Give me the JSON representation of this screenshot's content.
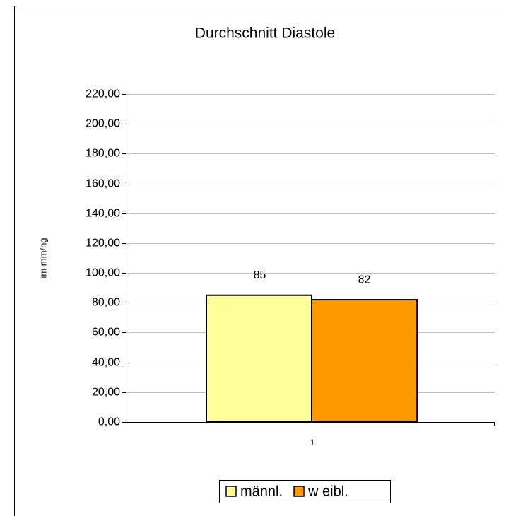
{
  "chart_data": {
    "type": "bar",
    "title": "Durchschnitt Diastole",
    "y_label": "im mm/hg",
    "categories": [
      "1"
    ],
    "series": [
      {
        "name": "männl.",
        "color": "#ffff99",
        "values": [
          85
        ]
      },
      {
        "name": "w eibl.",
        "color": "#ff9900",
        "values": [
          82
        ]
      }
    ],
    "ylim": [
      0,
      220
    ],
    "yticks": [
      {
        "value": 0,
        "label": "0,00"
      },
      {
        "value": 20,
        "label": "20,00"
      },
      {
        "value": 40,
        "label": "40,00"
      },
      {
        "value": 60,
        "label": "60,00"
      },
      {
        "value": 80,
        "label": "80,00"
      },
      {
        "value": 100,
        "label": "100,00"
      },
      {
        "value": 120,
        "label": "120,00"
      },
      {
        "value": 140,
        "label": "140,00"
      },
      {
        "value": 160,
        "label": "160,00"
      },
      {
        "value": 180,
        "label": "180,00"
      },
      {
        "value": 200,
        "label": "200,00"
      },
      {
        "value": 220,
        "label": "220,00"
      }
    ],
    "grid": true,
    "legend": "bottom"
  }
}
